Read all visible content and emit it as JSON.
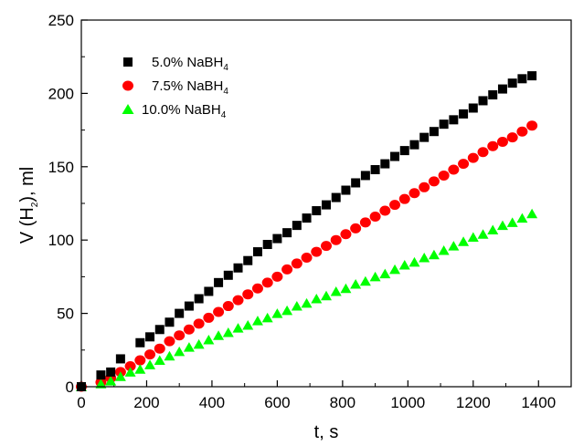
{
  "chart_data": {
    "type": "scatter",
    "title": "",
    "xlabel": {
      "pre": "t, s"
    },
    "ylabel": {
      "pre": "V (H",
      "sub": "2",
      "post": "), ml"
    },
    "xlim": [
      0,
      1500
    ],
    "ylim": [
      0,
      250
    ],
    "xticks": [
      0,
      200,
      400,
      600,
      800,
      1000,
      1200,
      1400
    ],
    "yticks": [
      0,
      50,
      100,
      150,
      200,
      250
    ],
    "xticks_minor": [
      100,
      300,
      500,
      700,
      900,
      1100,
      1300
    ],
    "yticks_minor": [
      25,
      75,
      125,
      175,
      225
    ],
    "legend_position": "top-left",
    "series": [
      {
        "name": {
          "pre": "5.0% NaBH",
          "sub": "4"
        },
        "marker": "square",
        "color": "#000000",
        "x": [
          0,
          60,
          90,
          120,
          180,
          210,
          240,
          270,
          300,
          330,
          360,
          390,
          420,
          450,
          480,
          510,
          540,
          570,
          600,
          630,
          660,
          690,
          720,
          750,
          780,
          810,
          840,
          870,
          900,
          930,
          960,
          990,
          1020,
          1050,
          1080,
          1110,
          1140,
          1170,
          1200,
          1230,
          1260,
          1290,
          1320,
          1350,
          1380
        ],
        "y": [
          0,
          8,
          10,
          19,
          30,
          34,
          39,
          44,
          50,
          55,
          60,
          65,
          71,
          76,
          81,
          86,
          92,
          97,
          101,
          105,
          110,
          115,
          120,
          124,
          129,
          134,
          139,
          144,
          148,
          152,
          157,
          161,
          165,
          170,
          174,
          179,
          182,
          186,
          190,
          195,
          199,
          203,
          207,
          210,
          212
        ]
      },
      {
        "name": {
          "pre": "7.5% NaBH",
          "sub": "4"
        },
        "marker": "circle",
        "color": "#ff0000",
        "x": [
          0,
          60,
          90,
          120,
          150,
          180,
          210,
          240,
          270,
          300,
          330,
          360,
          390,
          420,
          450,
          480,
          510,
          540,
          570,
          600,
          630,
          660,
          690,
          720,
          750,
          780,
          810,
          840,
          870,
          900,
          930,
          960,
          990,
          1020,
          1050,
          1080,
          1110,
          1140,
          1170,
          1200,
          1230,
          1260,
          1290,
          1320,
          1350,
          1380
        ],
        "y": [
          0,
          3,
          6,
          10,
          14,
          18,
          22,
          26,
          31,
          35,
          39,
          43,
          47,
          51,
          55,
          59,
          63,
          67,
          71,
          75,
          80,
          84,
          88,
          92,
          96,
          100,
          104,
          108,
          112,
          116,
          120,
          124,
          128,
          132,
          136,
          140,
          144,
          148,
          152,
          156,
          160,
          164,
          167,
          170,
          174,
          178
        ]
      },
      {
        "name": {
          "pre": "10.0% NaBH",
          "sub": "4"
        },
        "marker": "triangle",
        "color": "#00ff00",
        "x": [
          0,
          60,
          90,
          120,
          150,
          180,
          210,
          240,
          270,
          300,
          330,
          360,
          390,
          420,
          450,
          480,
          510,
          540,
          570,
          600,
          630,
          660,
          690,
          720,
          750,
          780,
          810,
          840,
          870,
          900,
          930,
          960,
          990,
          1020,
          1050,
          1080,
          1110,
          1140,
          1170,
          1200,
          1230,
          1260,
          1290,
          1320,
          1350,
          1380
        ],
        "y": [
          0,
          2,
          4,
          7,
          10,
          12,
          15,
          18,
          21,
          24,
          27,
          29,
          32,
          35,
          37,
          40,
          42,
          45,
          47,
          50,
          52,
          55,
          57,
          60,
          62,
          65,
          67,
          70,
          72,
          75,
          77,
          80,
          83,
          85,
          88,
          90,
          93,
          96,
          99,
          102,
          104,
          107,
          110,
          112,
          115,
          118
        ]
      }
    ]
  }
}
